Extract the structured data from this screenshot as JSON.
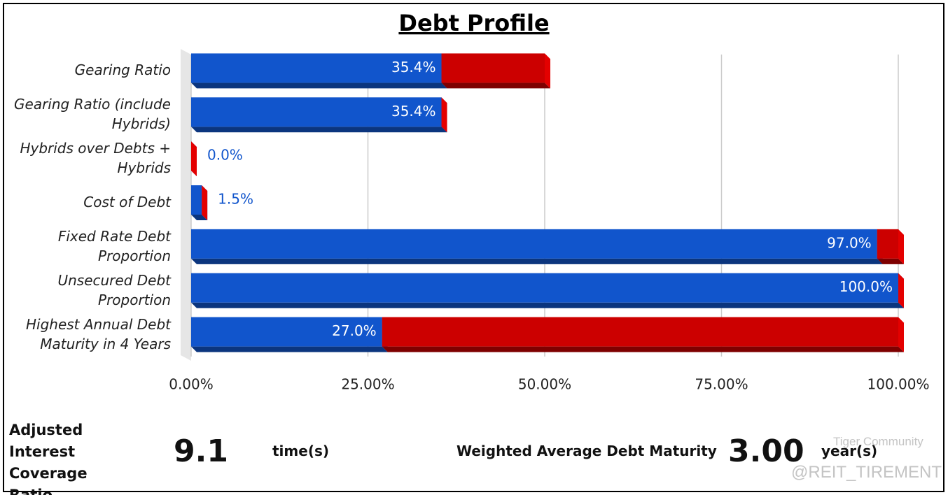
{
  "chart_data": {
    "type": "bar3d",
    "orientation": "horizontal",
    "stacked": true,
    "title": "Debt Profile",
    "categories": [
      "Gearing Ratio",
      "Gearing Ratio (include Hybrids)",
      "Hybrids over Debts + Hybrids",
      "Cost of Debt",
      "Fixed Rate Debt Proportion",
      "Unsecured Debt Proportion",
      "Highest Annual Debt Maturity in 4 Years"
    ],
    "series": [
      {
        "color": "#1155cc",
        "values": [
          35.4,
          35.4,
          0.0,
          1.5,
          97.0,
          100.0,
          27.0
        ],
        "value_labels": [
          "35.4%",
          "35.4%",
          "0.0%",
          "1.5%",
          "97.0%",
          "100.0%",
          "27.0%"
        ]
      },
      {
        "color": "#cc0000",
        "values": [
          14.6,
          0,
          0,
          0,
          3.0,
          0,
          73.0
        ]
      }
    ],
    "xlim": [
      0,
      100
    ],
    "xticks": [
      {
        "value": 0,
        "label": "0.00%"
      },
      {
        "value": 25,
        "label": "25.00%"
      },
      {
        "value": 50,
        "label": "50.00%"
      },
      {
        "value": 75,
        "label": "75.00%"
      },
      {
        "value": 100,
        "label": "100.00%"
      }
    ],
    "grid": true
  },
  "metrics": [
    {
      "label": "Adjusted Interest Coverage Ratio",
      "value": "9.1",
      "unit": "time(s)"
    },
    {
      "label": "Weighted Average Debt Maturity",
      "value": "3.00",
      "unit": "year(s)"
    }
  ],
  "watermark": {
    "brand": "Tiger Community",
    "handle": "@REIT_TIREMENT"
  }
}
